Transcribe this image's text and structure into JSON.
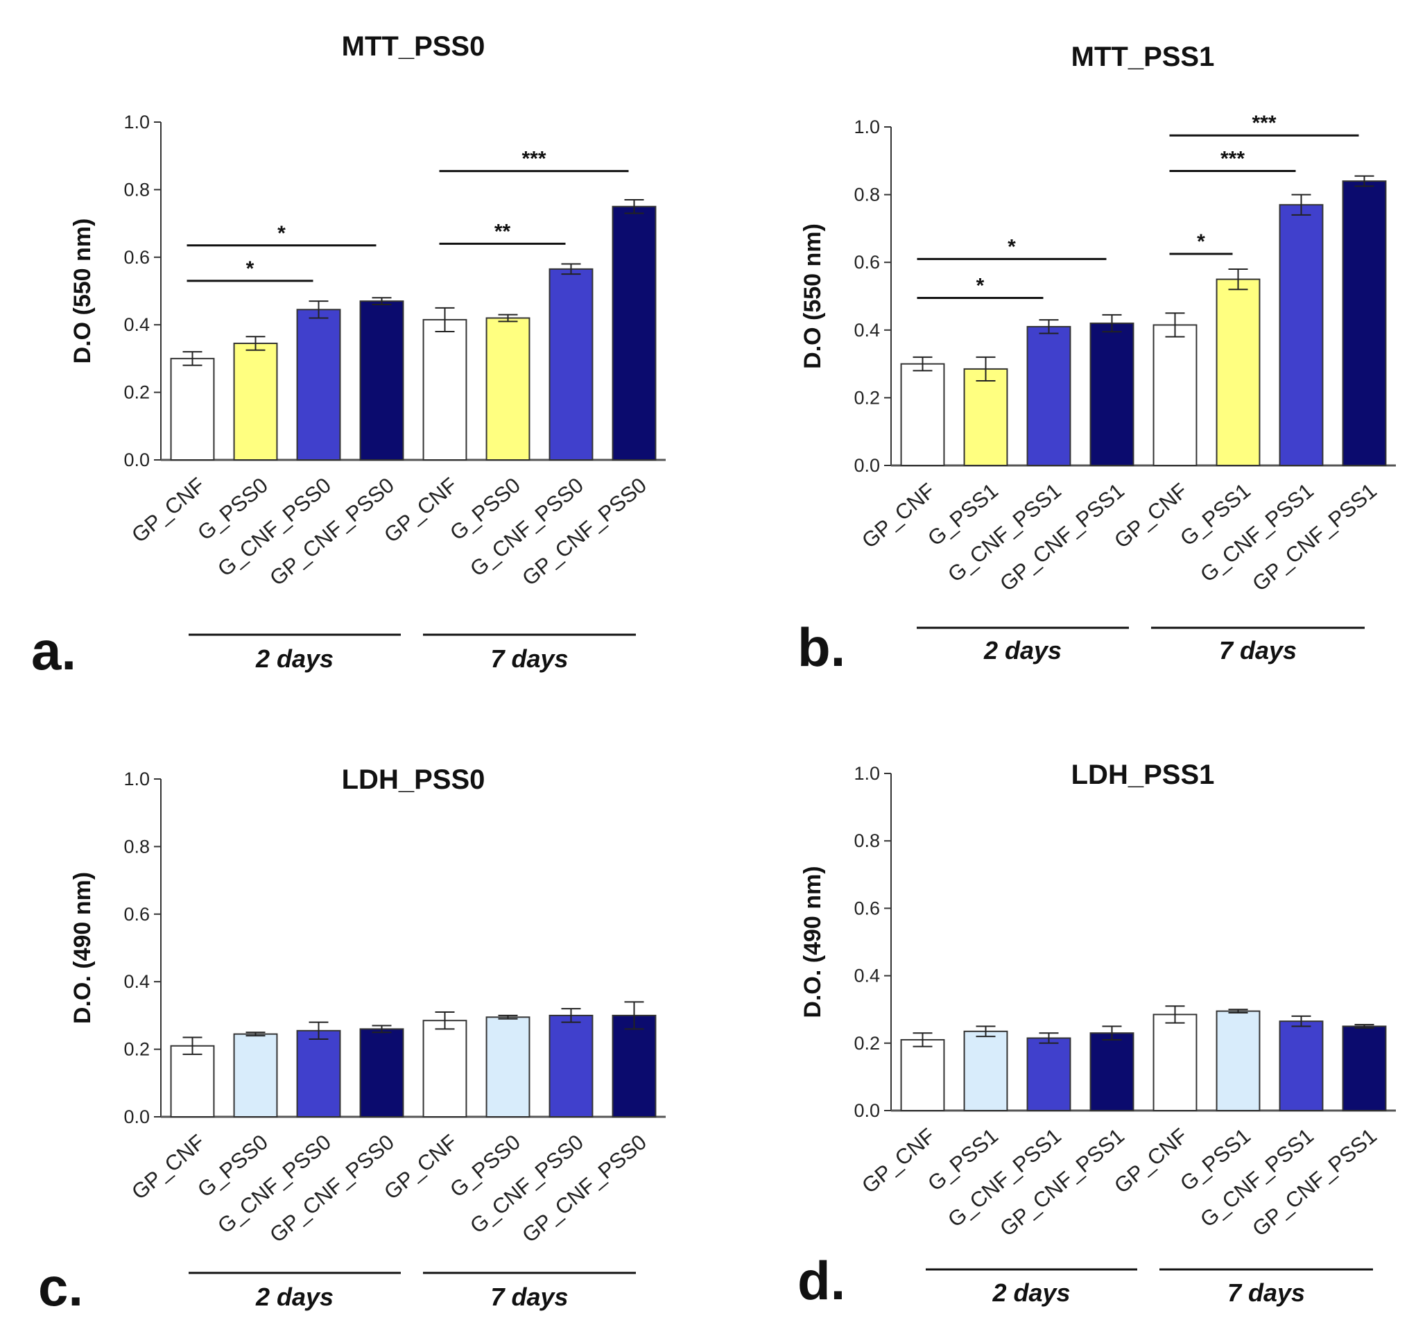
{
  "figure": {
    "panels": [
      {
        "id": "a",
        "panel_letter": "a.",
        "title": "MTT_PSS0",
        "ylabel": "D.O (550 nm)",
        "yticks": [
          "0.0",
          "0.2",
          "0.4",
          "0.6",
          "0.8",
          "1.0"
        ],
        "group_labels": [
          "2 days",
          "7 days"
        ]
      },
      {
        "id": "b",
        "panel_letter": "b.",
        "title": "MTT_PSS1",
        "ylabel": "D.O (550 nm)",
        "yticks": [
          "0.0",
          "0.2",
          "0.4",
          "0.6",
          "0.8",
          "1.0"
        ],
        "group_labels": [
          "2 days",
          "7 days"
        ]
      },
      {
        "id": "c",
        "panel_letter": "c.",
        "title": "LDH_PSS0",
        "ylabel": "D.O. (490 nm)",
        "yticks": [
          "0.0",
          "0.2",
          "0.4",
          "0.6",
          "0.8",
          "1.0"
        ],
        "group_labels": [
          "2 days",
          "7 days"
        ]
      },
      {
        "id": "d",
        "panel_letter": "d.",
        "title": "LDH_PSS1",
        "ylabel": "D.O. (490 nm)",
        "yticks": [
          "0.0",
          "0.2",
          "0.4",
          "0.6",
          "0.8",
          "1.0"
        ],
        "group_labels": [
          "2 days",
          "7 days"
        ]
      }
    ]
  },
  "chart_data": [
    {
      "type": "bar",
      "title": "MTT_PSS0",
      "ylabel": "D.O (550 nm)",
      "ylim": [
        0,
        1.0
      ],
      "categories": [
        "GP_CNF",
        "G_PSS0",
        "G_CNF_PSS0",
        "GP_CNF_PSS0",
        "GP_CNF",
        "G_PSS0",
        "G_CNF_PSS0",
        "GP_CNF_PSS0"
      ],
      "groups": [
        "2 days",
        "7 days"
      ],
      "values": [
        0.3,
        0.345,
        0.445,
        0.47,
        0.415,
        0.42,
        0.565,
        0.75
      ],
      "errors": [
        0.02,
        0.02,
        0.025,
        0.01,
        0.035,
        0.01,
        0.015,
        0.02
      ],
      "colors": [
        "#ffffff",
        "#ffff80",
        "#4040cc",
        "#0b0b6e",
        "#ffffff",
        "#ffff80",
        "#4040cc",
        "#0b0b6e"
      ],
      "significance": [
        {
          "from": 0,
          "to": 2,
          "label": "*",
          "level": 0.53
        },
        {
          "from": 0,
          "to": 3,
          "label": "*",
          "level": 0.635
        },
        {
          "from": 4,
          "to": 6,
          "label": "**",
          "level": 0.64
        },
        {
          "from": 4,
          "to": 7,
          "label": "***",
          "level": 0.855
        }
      ]
    },
    {
      "type": "bar",
      "title": "MTT_PSS1",
      "ylabel": "D.O (550 nm)",
      "ylim": [
        0,
        1.0
      ],
      "categories": [
        "GP_CNF",
        "G_PSS1",
        "G_CNF_PSS1",
        "GP_CNF_PSS1",
        "GP_CNF",
        "G_PSS1",
        "G_CNF_PSS1",
        "GP_CNF_PSS1"
      ],
      "groups": [
        "2 days",
        "7 days"
      ],
      "values": [
        0.3,
        0.285,
        0.41,
        0.42,
        0.415,
        0.55,
        0.77,
        0.84
      ],
      "errors": [
        0.02,
        0.035,
        0.02,
        0.025,
        0.035,
        0.03,
        0.03,
        0.015
      ],
      "colors": [
        "#ffffff",
        "#ffff80",
        "#4040cc",
        "#0b0b6e",
        "#ffffff",
        "#ffff80",
        "#4040cc",
        "#0b0b6e"
      ],
      "significance": [
        {
          "from": 0,
          "to": 2,
          "label": "*",
          "level": 0.495
        },
        {
          "from": 0,
          "to": 3,
          "label": "*",
          "level": 0.61
        },
        {
          "from": 4,
          "to": 5,
          "label": "*",
          "level": 0.625
        },
        {
          "from": 4,
          "to": 6,
          "label": "***",
          "level": 0.87
        },
        {
          "from": 4,
          "to": 7,
          "label": "***",
          "level": 0.975
        }
      ]
    },
    {
      "type": "bar",
      "title": "LDH_PSS0",
      "ylabel": "D.O. (490 nm)",
      "ylim": [
        0,
        1.0
      ],
      "categories": [
        "GP_CNF",
        "G_PSS0",
        "G_CNF_PSS0",
        "GP_CNF_PSS0",
        "GP_CNF",
        "G_PSS0",
        "G_CNF_PSS0",
        "GP_CNF_PSS0"
      ],
      "groups": [
        "2 days",
        "7 days"
      ],
      "values": [
        0.21,
        0.245,
        0.255,
        0.26,
        0.285,
        0.295,
        0.3,
        0.3
      ],
      "errors": [
        0.025,
        0.005,
        0.025,
        0.01,
        0.025,
        0.005,
        0.02,
        0.04
      ],
      "colors": [
        "#ffffff",
        "#d8ecfb",
        "#4040cc",
        "#0b0b6e",
        "#ffffff",
        "#d8ecfb",
        "#4040cc",
        "#0b0b6e"
      ],
      "significance": []
    },
    {
      "type": "bar",
      "title": "LDH_PSS1",
      "ylabel": "D.O. (490 nm)",
      "ylim": [
        0,
        1.0
      ],
      "categories": [
        "GP_CNF",
        "G_PSS1",
        "G_CNF_PSS1",
        "GP_CNF_PSS1",
        "GP_CNF",
        "G_PSS1",
        "G_CNF_PSS1",
        "GP_CNF_PSS1"
      ],
      "groups": [
        "2 days",
        "7 days"
      ],
      "values": [
        0.21,
        0.235,
        0.215,
        0.23,
        0.285,
        0.295,
        0.265,
        0.25
      ],
      "errors": [
        0.02,
        0.015,
        0.015,
        0.02,
        0.025,
        0.005,
        0.015,
        0.005
      ],
      "colors": [
        "#ffffff",
        "#d8ecfb",
        "#4040cc",
        "#0b0b6e",
        "#ffffff",
        "#d8ecfb",
        "#4040cc",
        "#0b0b6e"
      ],
      "significance": []
    }
  ]
}
